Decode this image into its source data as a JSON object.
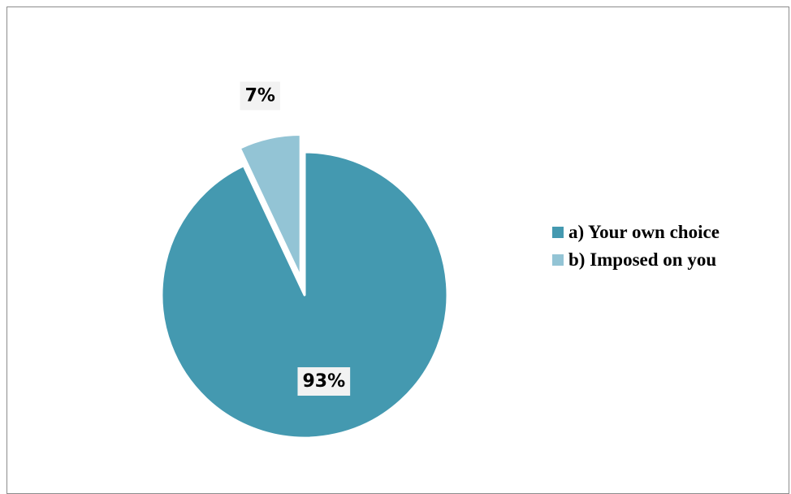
{
  "chart_data": {
    "type": "pie",
    "slices": [
      {
        "label": "a) Your own choice",
        "value": 93,
        "data_label": "93%",
        "color": "#4499b0"
      },
      {
        "label": "b) Imposed on you",
        "value": 7,
        "data_label": "7%",
        "color": "#93c4d5",
        "exploded": true
      }
    ],
    "legend": {
      "position": "right",
      "items": [
        "a) Your own choice",
        "b) Imposed on you"
      ]
    }
  }
}
